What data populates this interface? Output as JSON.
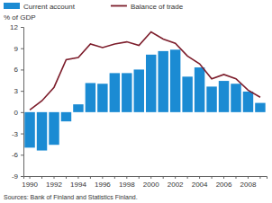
{
  "chart_data": {
    "type": "bar",
    "y_label": "% of GDP",
    "annotations": [
      "Sources: Bank of Finland and Statistics Finland."
    ],
    "categories": [
      "1990",
      null,
      "1992",
      null,
      "1994",
      null,
      "1996",
      null,
      "1998",
      null,
      "2000",
      null,
      "2002",
      null,
      "2004",
      null,
      "2006",
      null,
      "2008",
      null
    ],
    "series": [
      {
        "name": "Current account",
        "type": "bar",
        "color": "#1b8bd3",
        "values": [
          -5.0,
          -5.4,
          -4.6,
          -1.3,
          1.1,
          4.1,
          4.0,
          5.5,
          5.5,
          6.0,
          8.1,
          8.6,
          8.8,
          5.0,
          6.3,
          3.6,
          4.4,
          4.0,
          2.9,
          1.3
        ]
      },
      {
        "name": "Balance of trade",
        "type": "line",
        "color": "#7d1e2c",
        "values": [
          0.3,
          1.6,
          3.5,
          7.4,
          7.7,
          9.6,
          9.1,
          9.6,
          9.9,
          9.4,
          11.3,
          10.3,
          9.7,
          7.9,
          6.8,
          4.7,
          5.3,
          4.7,
          3.1,
          2.1
        ]
      }
    ],
    "ylim": [
      -9,
      12
    ],
    "yticks": [
      -9,
      -6,
      -3,
      0,
      3,
      6,
      9,
      12
    ],
    "grid": false,
    "legend": "top"
  }
}
